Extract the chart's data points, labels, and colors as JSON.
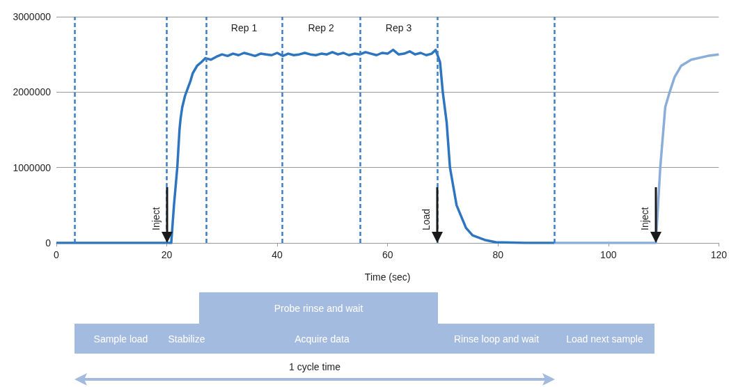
{
  "chart_data": [
    {
      "type": "line",
      "xlabel": "Time (sec)",
      "xlim": [
        0,
        120
      ],
      "xticks": [
        0,
        20,
        40,
        60,
        80,
        100,
        120
      ],
      "ylim": [
        0,
        3000000
      ],
      "yticks": [
        0,
        1000000,
        2000000,
        3000000
      ],
      "grid": "y",
      "marker": "none",
      "series": [
        {
          "color": "#2e75c0",
          "x": [
            0,
            20.8,
            21.3,
            21.9,
            22.3,
            22.5,
            22.8,
            23.3,
            23.8,
            24.3,
            24.7,
            25.5,
            26.3,
            27,
            28,
            29,
            30,
            31,
            32,
            33,
            34,
            35,
            36,
            37,
            38,
            39,
            40,
            41,
            42,
            43,
            44,
            45,
            46,
            47,
            48,
            49,
            50,
            51,
            52,
            53,
            54,
            55,
            56,
            57,
            58,
            59,
            60,
            61,
            62,
            63,
            64,
            65,
            66,
            67,
            68,
            68.7,
            69,
            69.5,
            70,
            70.7,
            71.3,
            72.5,
            74.2,
            75.4,
            77.6,
            79.6,
            85,
            90.2
          ],
          "values": [
            0,
            0,
            500000,
            1000000,
            1500000,
            1650000,
            1800000,
            1950000,
            2050000,
            2150000,
            2250000,
            2350000,
            2400000,
            2450000,
            2430000,
            2470000,
            2500000,
            2480000,
            2510000,
            2490000,
            2520000,
            2500000,
            2480000,
            2510000,
            2500000,
            2490000,
            2520000,
            2480000,
            2510000,
            2490000,
            2500000,
            2520000,
            2500000,
            2490000,
            2510000,
            2500000,
            2530000,
            2500000,
            2520000,
            2490000,
            2510000,
            2500000,
            2530000,
            2510000,
            2490000,
            2520000,
            2510000,
            2560000,
            2500000,
            2510000,
            2540000,
            2500000,
            2520000,
            2490000,
            2510000,
            2560000,
            2500000,
            2400000,
            2000000,
            1600000,
            1000000,
            500000,
            200000,
            100000,
            40000,
            10000,
            0,
            0
          ]
        },
        {
          "color": "#8badda",
          "x": [
            90.2,
            108.6,
            109.4,
            110.3,
            111.1,
            112,
            113.2,
            115,
            118,
            120
          ],
          "values": [
            0,
            0,
            1000000,
            1800000,
            2000000,
            2200000,
            2350000,
            2430000,
            2480000,
            2500000
          ]
        }
      ],
      "ref_lines": [
        {
          "axis": "x",
          "value": 3.3,
          "color": "#3d7fc8",
          "line_style": "dashed"
        },
        {
          "axis": "x",
          "value": 20,
          "color": "#3d7fc8",
          "line_style": "dashed"
        },
        {
          "axis": "x",
          "value": 27.1,
          "label": "Rep 1",
          "color": "#3d7fc8",
          "line_style": "dashed"
        },
        {
          "axis": "x",
          "value": 40.9,
          "label": "Rep 2",
          "color": "#3d7fc8",
          "line_style": "dashed"
        },
        {
          "axis": "x",
          "value": 55,
          "label": "Rep 3",
          "color": "#3d7fc8",
          "line_style": "dashed"
        },
        {
          "axis": "x",
          "value": 69,
          "color": "#3d7fc8",
          "line_style": "dashed"
        },
        {
          "axis": "x",
          "value": 90.2,
          "color": "#3d7fc8",
          "line_style": "dashed"
        }
      ],
      "annotations": [
        {
          "text": "Inject",
          "x": 20,
          "y": 0
        },
        {
          "text": "Load",
          "x": 69,
          "y": 0
        },
        {
          "text": "Inject",
          "x": 108.6,
          "y": 0
        }
      ]
    },
    {
      "type": "other",
      "annotations": [
        "Probe rinse and wait",
        "Sample load",
        "Stabilize",
        "Acquire data",
        "Rinse loop and wait",
        "Load next sample",
        "1 cycle time"
      ]
    }
  ]
}
